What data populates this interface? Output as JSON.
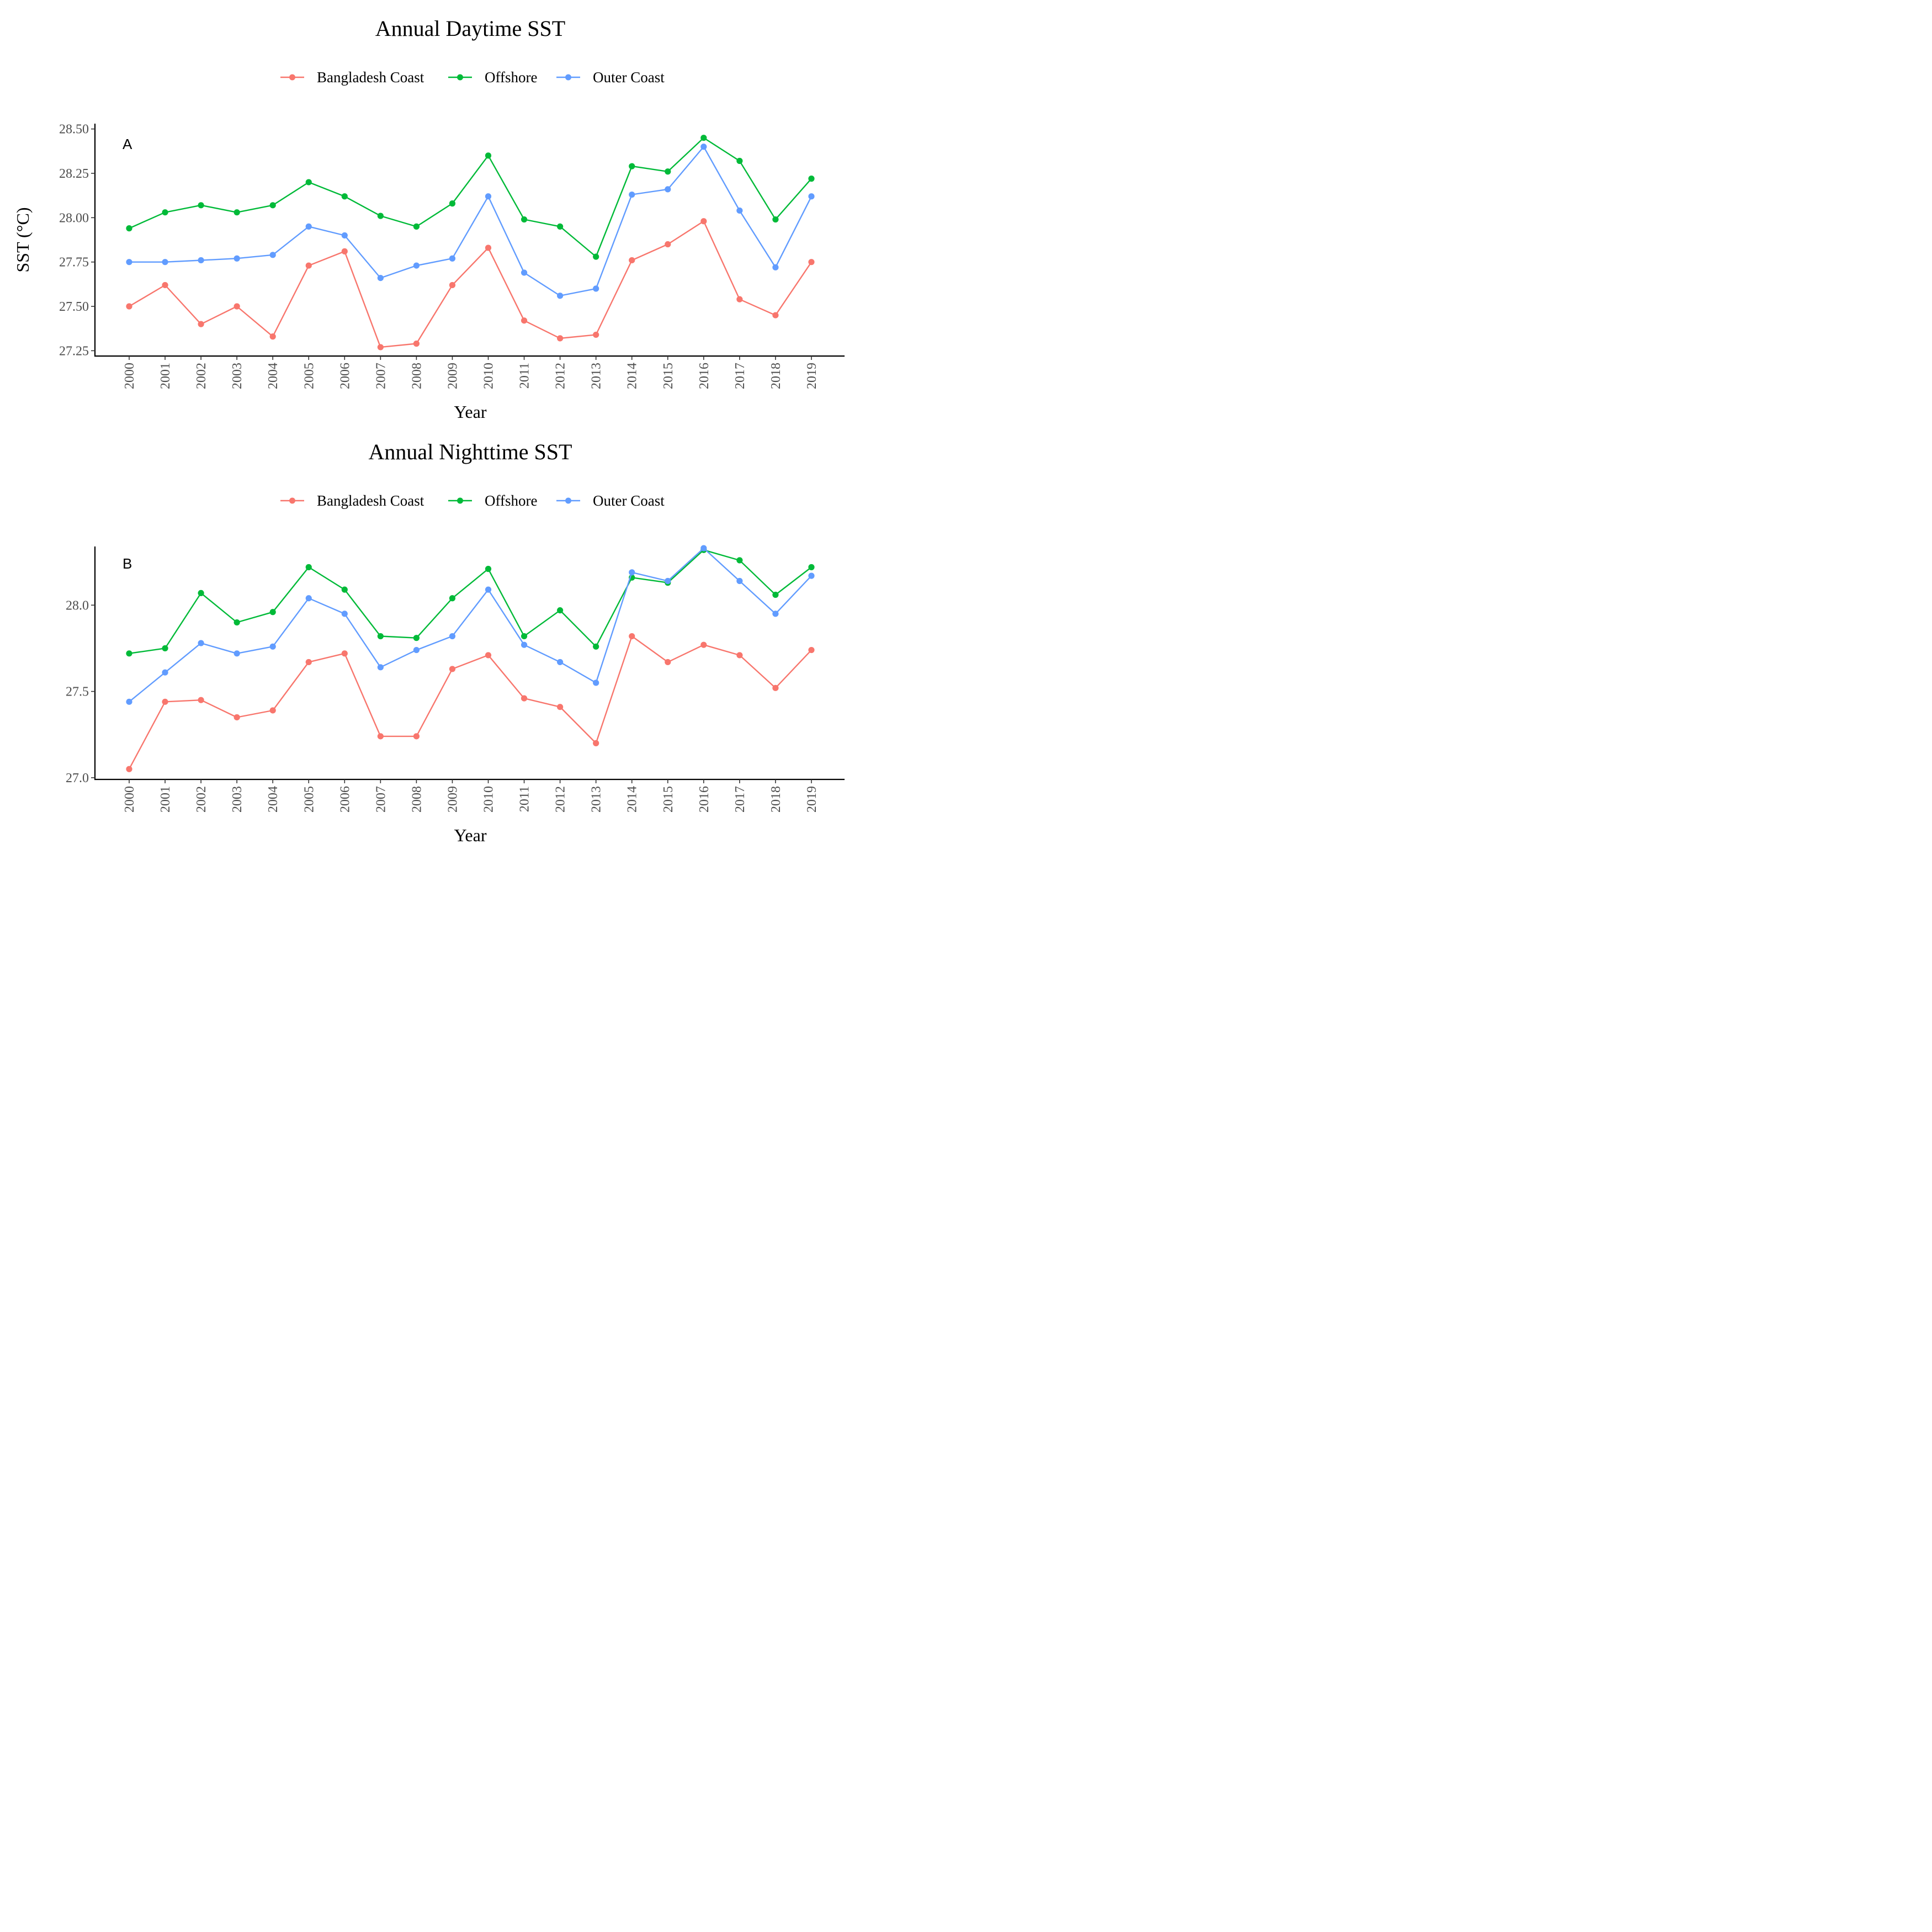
{
  "chart_data": [
    {
      "type": "line",
      "title": "Annual Daytime SST",
      "panel_label": "A",
      "xlabel": "Year",
      "ylabel": "SST (°C)",
      "x": [
        "2000",
        "2001",
        "2002",
        "2003",
        "2004",
        "2005",
        "2006",
        "2007",
        "2008",
        "2009",
        "2010",
        "2011",
        "2012",
        "2013",
        "2014",
        "2015",
        "2016",
        "2017",
        "2018",
        "2019"
      ],
      "ylim": [
        27.22,
        28.53
      ],
      "yticks": [
        27.25,
        27.5,
        27.75,
        28.0,
        28.25,
        28.5
      ],
      "ytick_labels": [
        "27.25",
        "27.50",
        "27.75",
        "28.00",
        "28.25",
        "28.50"
      ],
      "legend_position": "top",
      "grid": false,
      "series": [
        {
          "name": "Bangladesh Coast",
          "color": "#F8766D",
          "values": [
            27.5,
            27.62,
            27.4,
            27.5,
            27.33,
            27.73,
            27.81,
            27.27,
            27.29,
            27.62,
            27.83,
            27.42,
            27.32,
            27.34,
            27.76,
            27.85,
            27.98,
            27.54,
            27.45,
            27.75
          ]
        },
        {
          "name": "Offshore",
          "color": "#00BA38",
          "values": [
            27.94,
            28.03,
            28.07,
            28.03,
            28.07,
            28.2,
            28.12,
            28.01,
            27.95,
            28.08,
            28.35,
            27.99,
            27.95,
            27.78,
            28.29,
            28.26,
            28.45,
            28.32,
            27.99,
            28.22
          ]
        },
        {
          "name": "Outer Coast",
          "color": "#619CFF",
          "values": [
            27.75,
            27.75,
            27.76,
            27.77,
            27.79,
            27.95,
            27.9,
            27.66,
            27.73,
            27.77,
            28.12,
            27.69,
            27.56,
            27.6,
            28.13,
            28.16,
            28.4,
            28.04,
            27.72,
            28.12
          ]
        }
      ]
    },
    {
      "type": "line",
      "title": "Annual Nighttime SST",
      "panel_label": "B",
      "xlabel": "Year",
      "ylabel": "",
      "x": [
        "2000",
        "2001",
        "2002",
        "2003",
        "2004",
        "2005",
        "2006",
        "2007",
        "2008",
        "2009",
        "2010",
        "2011",
        "2012",
        "2013",
        "2014",
        "2015",
        "2016",
        "2017",
        "2018",
        "2019"
      ],
      "ylim": [
        26.99,
        28.34
      ],
      "yticks": [
        27.0,
        27.5,
        28.0
      ],
      "ytick_labels": [
        "27.0",
        "27.5",
        "28.0"
      ],
      "legend_position": "top",
      "grid": false,
      "series": [
        {
          "name": "Bangladesh Coast",
          "color": "#F8766D",
          "values": [
            27.05,
            27.44,
            27.45,
            27.35,
            27.39,
            27.67,
            27.72,
            27.24,
            27.24,
            27.63,
            27.71,
            27.46,
            27.41,
            27.2,
            27.82,
            27.67,
            27.77,
            27.71,
            27.52,
            27.74
          ]
        },
        {
          "name": "Offshore",
          "color": "#00BA38",
          "values": [
            27.72,
            27.75,
            28.07,
            27.9,
            27.96,
            28.22,
            28.09,
            27.82,
            27.81,
            28.04,
            28.21,
            27.82,
            27.97,
            27.76,
            28.16,
            28.13,
            28.32,
            28.26,
            28.06,
            28.22
          ]
        },
        {
          "name": "Outer Coast",
          "color": "#619CFF",
          "values": [
            27.44,
            27.61,
            27.78,
            27.72,
            27.76,
            28.04,
            27.95,
            27.64,
            27.74,
            27.82,
            28.09,
            27.77,
            27.67,
            27.55,
            28.19,
            28.14,
            28.33,
            28.14,
            27.95,
            28.17
          ]
        }
      ]
    }
  ]
}
